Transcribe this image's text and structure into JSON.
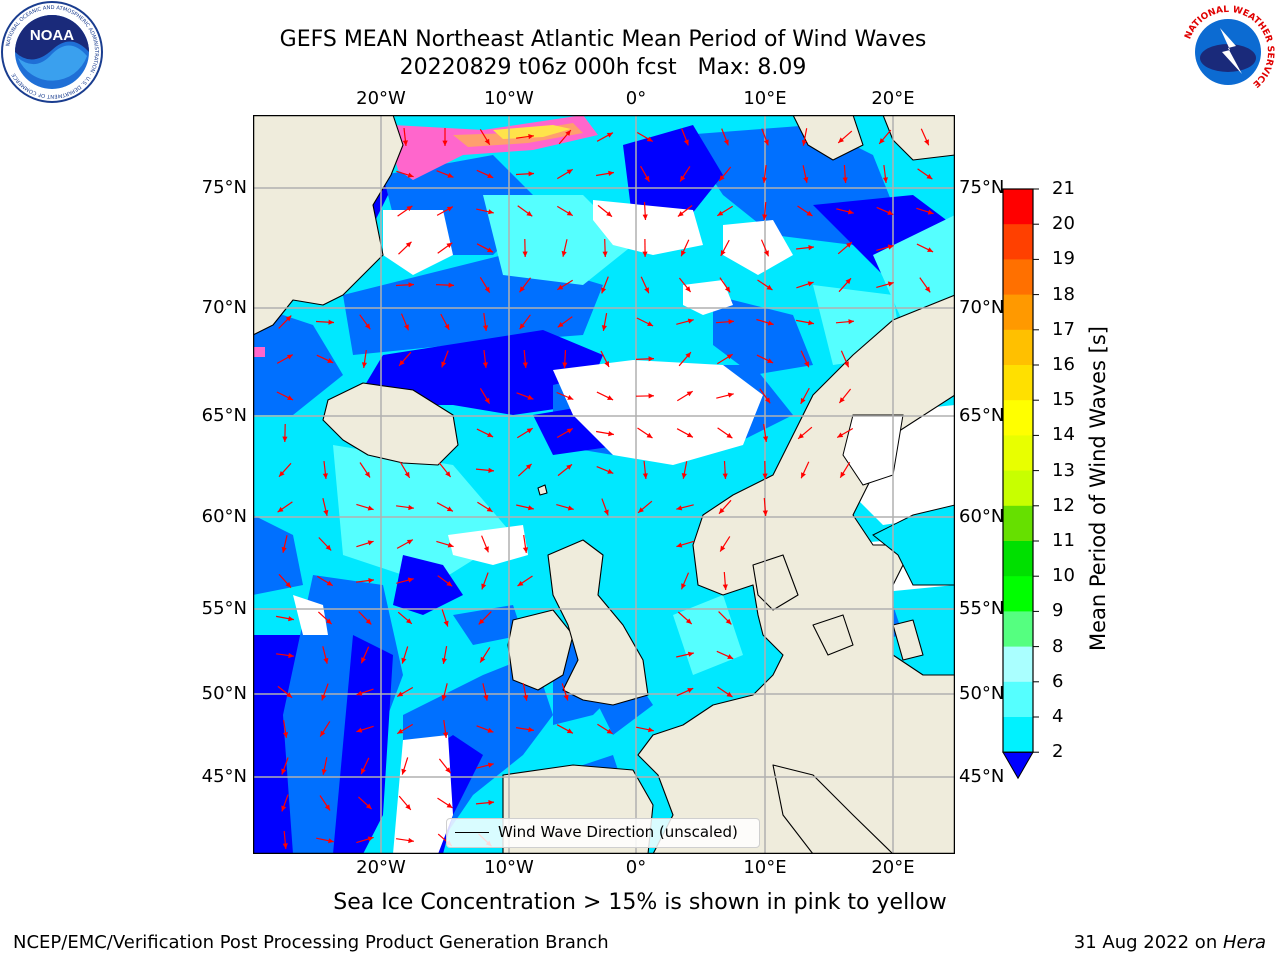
{
  "title": {
    "line1": "GEFS MEAN Northeast Atlantic Mean Period of Wind Waves",
    "line2": "20220829 t06z 000h fcst   Max: 8.09"
  },
  "map": {
    "lon_labels": [
      "20°W",
      "10°W",
      "0°",
      "10°E",
      "20°E"
    ],
    "lat_labels": [
      "75°N",
      "70°N",
      "65°N",
      "60°N",
      "55°N",
      "50°N",
      "45°N"
    ],
    "legend_label": "Wind Wave Direction (unscaled)",
    "colors": {
      "land": "#efecdc",
      "grid": "#b0b0b0",
      "arrow": "#ff0000",
      "no_data": "#ffffff"
    },
    "wave_period_bands": [
      {
        "range": "<2",
        "color": "#0000ff"
      },
      {
        "range": "2-4",
        "color": "#0070ff"
      },
      {
        "range": "4-6",
        "color": "#00e8ff"
      },
      {
        "range": "6-8",
        "color": "#55ffff"
      },
      {
        "range": "8-9",
        "color": "#aaffff"
      }
    ],
    "sea_ice_colors": [
      "#ff66cc",
      "#ff9f6e",
      "#ffe34a"
    ]
  },
  "colorbar": {
    "label": "Mean Period of Wind Waves [s]",
    "ticks": [
      "2",
      "4",
      "6",
      "8",
      "9",
      "10",
      "11",
      "12",
      "13",
      "14",
      "15",
      "16",
      "17",
      "18",
      "19",
      "20",
      "21"
    ],
    "colors": [
      "#0070ff",
      "#00f2ff",
      "#55ffff",
      "#aaffff",
      "#55ff80",
      "#00ff00",
      "#00e000",
      "#66e000",
      "#c8ff00",
      "#e8ff00",
      "#ffff00",
      "#ffe000",
      "#ffc000",
      "#ff9900",
      "#ff7000",
      "#ff4000",
      "#ff0000"
    ],
    "extend_color": "#0000ff"
  },
  "caption": "Sea Ice Concentration > 15% is shown in pink to yellow",
  "footer": {
    "left": "NCEP/EMC/Verification Post Processing Product Generation Branch",
    "right_date": "31 Aug 2022 on ",
    "right_host": "Hera"
  },
  "logos": {
    "noaa": {
      "text": "NOAA",
      "ring_text": "NATIONAL OCEANIC AND ATMOSPHERIC ADMINISTRATION · U.S. DEPARTMENT OF COMMERCE"
    },
    "nws": {
      "ring_text": "NATIONAL WEATHER SERVICE"
    }
  }
}
